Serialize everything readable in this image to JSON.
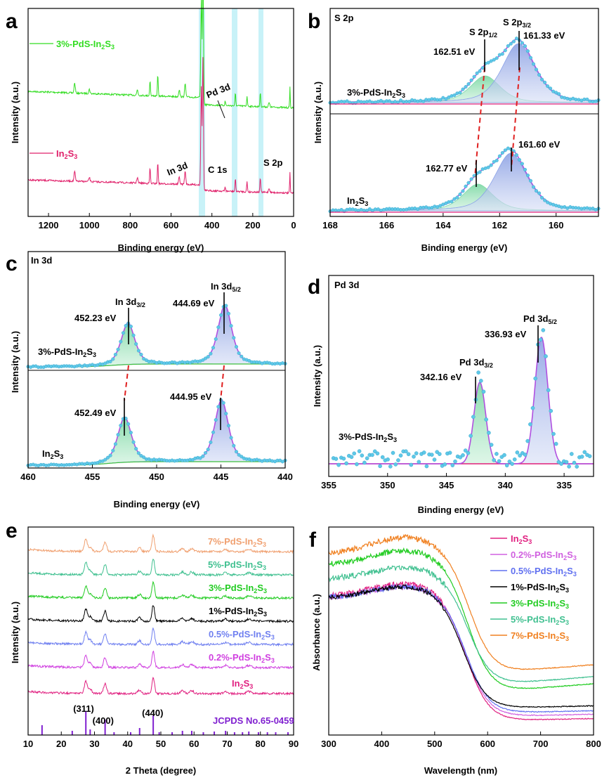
{
  "chart_data": [
    {
      "panel": "a",
      "type": "line",
      "xlabel": "Binding energy (eV)",
      "ylabel": "Intensity (a.u.)",
      "xlim": [
        1300,
        0
      ],
      "x_ticks": [
        1200,
        1000,
        800,
        600,
        400,
        200,
        0
      ],
      "series": [
        {
          "name": "3%-PdS-In2S3",
          "color": "#33dd22"
        },
        {
          "name": "In2S3",
          "color": "#e0206a"
        }
      ],
      "highlight_bands": [
        447,
        285,
        163
      ],
      "annotations": {
        "pd3d": "Pd 3d",
        "in3d": "In 3d",
        "c1s": "C 1s",
        "s2p": "S 2p"
      }
    },
    {
      "panel": "b",
      "type": "line",
      "title": "S 2p",
      "xlabel": "Binding energy (eV)",
      "ylabel": "Intensity (a.u.)",
      "xlim": [
        168,
        158.5
      ],
      "x_ticks": [
        168,
        166,
        164,
        162,
        160
      ],
      "series": [
        {
          "name": "3%-PdS-In2S3",
          "peaks_eV": [
            162.51,
            161.33
          ]
        },
        {
          "name": "In2S3",
          "peaks_eV": [
            162.77,
            161.6
          ]
        }
      ],
      "annotations": {
        "p12": "S 2p",
        "p12_sub": "1/2",
        "p32": "S 2p",
        "p32_sub": "3/2",
        "top_a": "162.51 eV",
        "top_b": "161.33 eV",
        "bot_a": "162.77 eV",
        "bot_b": "161.60 eV"
      }
    },
    {
      "panel": "c",
      "type": "line",
      "title": "In 3d",
      "xlabel": "Binding energy (eV)",
      "ylabel": "Intensity (a.u.)",
      "xlim": [
        460,
        440
      ],
      "x_ticks": [
        460,
        455,
        450,
        445,
        440
      ],
      "series": [
        {
          "name": "3%-PdS-In2S3",
          "peaks_eV": [
            452.23,
            444.69
          ]
        },
        {
          "name": "In2S3",
          "peaks_eV": [
            452.49,
            444.95
          ]
        }
      ],
      "annotations": {
        "d32": "In 3d",
        "d32_sub": "3/2",
        "d52": "In 3d",
        "d52_sub": "5/2",
        "top_a": "452.23 eV",
        "top_b": "444.69 eV",
        "bot_a": "452.49 eV",
        "bot_b": "444.95 eV"
      }
    },
    {
      "panel": "d",
      "type": "line",
      "title": "Pd 3d",
      "xlabel": "Binding energy (eV)",
      "ylabel": "Intensity (a.u.)",
      "xlim": [
        355,
        332.5
      ],
      "x_ticks": [
        355,
        350,
        345,
        340,
        335
      ],
      "series": [
        {
          "name": "3%-PdS-In2S3",
          "peaks_eV": [
            342.16,
            336.93
          ]
        }
      ],
      "annotations": {
        "d32": "Pd 3d",
        "d32_sub": "3/2",
        "d52": "Pd 3d",
        "d52_sub": "5/2",
        "pa": "342.16 eV",
        "pb": "336.93 eV"
      }
    },
    {
      "panel": "e",
      "type": "line",
      "xlabel": "2 Theta (degree)",
      "ylabel": "Intensity (a.u.)",
      "xlim": [
        10,
        90
      ],
      "x_ticks": [
        10,
        20,
        30,
        40,
        50,
        60,
        70,
        80,
        90
      ],
      "series": [
        {
          "name": "7%-PdS-In2S3",
          "color": "#f0a070"
        },
        {
          "name": "5%-PdS-In2S3",
          "color": "#40c090"
        },
        {
          "name": "3%-PdS-In2S3",
          "color": "#22cc22"
        },
        {
          "name": "1%-PdS-In2S3",
          "color": "#000000"
        },
        {
          "name": "0.5%-PdS-In2S3",
          "color": "#7080f0"
        },
        {
          "name": "0.2%-PdS-In2S3",
          "color": "#d040e0"
        },
        {
          "name": "In2S3",
          "color": "#e02080"
        }
      ],
      "reference": "JCPDS No.65-0459",
      "hkl": [
        {
          "label": "(311)",
          "x": 27.4
        },
        {
          "label": "(400)",
          "x": 33.2
        },
        {
          "label": "(440)",
          "x": 47.7
        }
      ]
    },
    {
      "panel": "f",
      "type": "line",
      "xlabel": "Wavelength (nm)",
      "ylabel": "Absorbance (a.u.)",
      "xlim": [
        300,
        800
      ],
      "x_ticks": [
        300,
        400,
        500,
        600,
        700,
        800
      ],
      "series": [
        {
          "name": "In2S3",
          "color": "#e02080"
        },
        {
          "name": "0.2%-PdS-In2S3",
          "color": "#d060e0"
        },
        {
          "name": "0.5%-PdS-In2S3",
          "color": "#6070f0"
        },
        {
          "name": "1%-PdS-In2S3",
          "color": "#000000"
        },
        {
          "name": "3%-PdS-In2S3",
          "color": "#22cc22"
        },
        {
          "name": "5%-PdS-In2S3",
          "color": "#40c090"
        },
        {
          "name": "7%-PdS-In2S3",
          "color": "#f08020"
        }
      ]
    }
  ],
  "labels": {
    "a": "a",
    "b": "b",
    "c": "c",
    "d": "d",
    "e": "e",
    "f": "f",
    "pd3": "3%-PdS-In",
    "in2": "In",
    "s2": "S",
    "sub2": "2",
    "sub3": "3"
  }
}
